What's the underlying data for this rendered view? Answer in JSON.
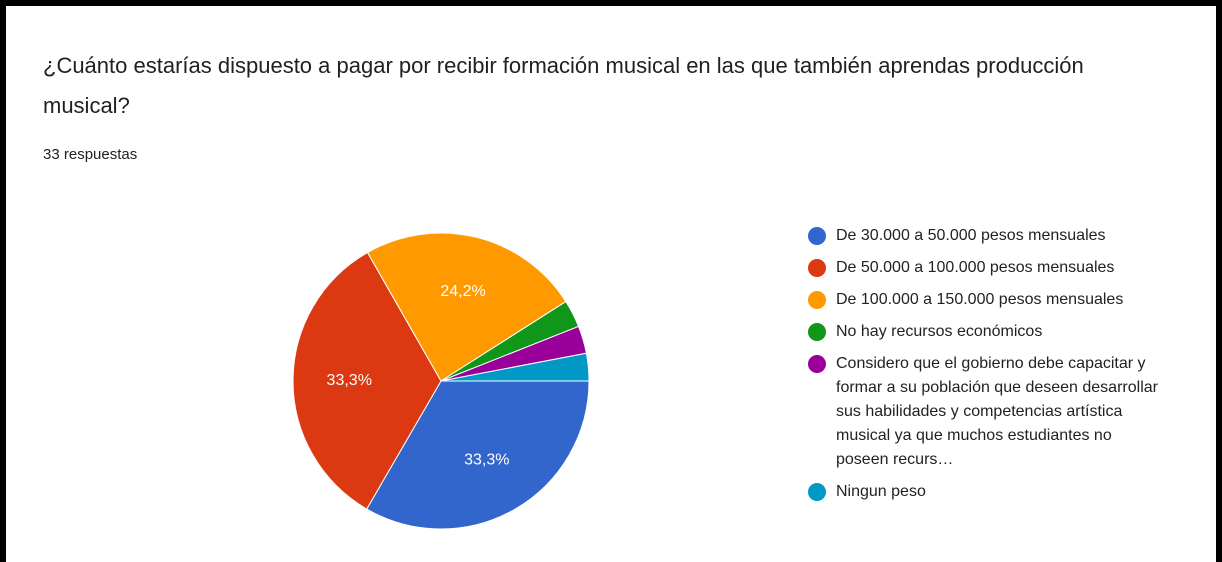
{
  "chart_data": {
    "type": "pie",
    "title": "¿Cuánto estarías dispuesto a pagar por recibir formación musical en las que también aprendas producción musical?",
    "subtitle": "33 respuestas",
    "categories": [
      "De 30.000 a 50.000 pesos mensuales",
      "De 50.000 a 100.000 pesos mensuales",
      "De 100.000 a 150.000 pesos mensuales",
      "No hay recursos económicos",
      "Considero que el gobierno debe capacitar y formar a su población que deseen desarrollar sus habilidades y competencias artística musical ya que muchos estudiantes no poseen recurs…",
      "Ningun peso"
    ],
    "values": [
      33.3,
      33.3,
      24.2,
      3.0,
      3.0,
      3.0
    ],
    "value_labels": [
      "33,3%",
      "33,3%",
      "24,2%",
      null,
      null,
      null
    ],
    "colors": [
      "#3366cc",
      "#dc3912",
      "#ff9900",
      "#109618",
      "#990099",
      "#0099c6"
    ],
    "legend": "right"
  }
}
